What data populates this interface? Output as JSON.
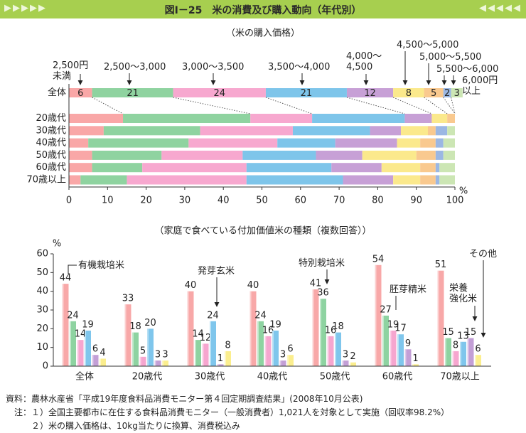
{
  "header": {
    "title": "図Ⅰ－25　米の消費及び購入動向（年代別）"
  },
  "chart_data": [
    {
      "type": "stackedbar",
      "subtitle": "（米の購入価格）",
      "categories": [
        "全体",
        "20歳代",
        "30歳代",
        "40歳代",
        "50歳代",
        "60歳代",
        "70歳以上"
      ],
      "series": [
        {
          "name": "2,500円\n未満",
          "color": "#f9a7a7",
          "values": [
            6,
            14,
            9,
            5,
            6,
            6,
            3
          ]
        },
        {
          "name": "2,500～3,000",
          "color": "#8fd3a0",
          "values": [
            21,
            33,
            25,
            26,
            18,
            13,
            12
          ]
        },
        {
          "name": "3,000～3,500",
          "color": "#f7a8cf",
          "values": [
            24,
            16,
            24,
            23,
            21,
            27,
            31
          ]
        },
        {
          "name": "3,500～4,000",
          "color": "#7ec5ea",
          "values": [
            21,
            24,
            20,
            15,
            19,
            22,
            25
          ]
        },
        {
          "name": "4,000～\n4,500",
          "color": "#c7a0d6",
          "values": [
            12,
            7,
            8,
            16,
            12,
            13,
            13
          ]
        },
        {
          "name": "4,500～5,000",
          "color": "#fbe98c",
          "values": [
            8,
            4,
            7,
            6,
            14,
            10,
            7
          ]
        },
        {
          "name": "5,000～5,500",
          "color": "#f9c98f",
          "values": [
            5,
            2,
            2,
            4,
            5,
            4,
            4
          ]
        },
        {
          "name": "5,500～6,000",
          "color": "#9bb7e3",
          "values": [
            2,
            0,
            3,
            2,
            2,
            1,
            1
          ]
        },
        {
          "name": "6,000円\n以上",
          "color": "#cce6b4",
          "values": [
            3,
            0,
            2,
            3,
            3,
            4,
            4
          ]
        }
      ],
      "xlim": [
        0,
        100
      ],
      "xticks": [
        0,
        10,
        20,
        30,
        40,
        50,
        60,
        70,
        80,
        90,
        100
      ],
      "x_unit": "%"
    },
    {
      "type": "bar",
      "subtitle": "（家庭で食べている付加価値米の種類（複数回答））",
      "categories": [
        "全体",
        "20歳代",
        "30歳代",
        "40歳代",
        "50歳代",
        "60歳代",
        "70歳以上"
      ],
      "series": [
        {
          "name": "有機栽培米",
          "color": "#f8a8a8",
          "values": [
            44,
            33,
            40,
            40,
            41,
            54,
            51
          ]
        },
        {
          "name": "特別栽培米",
          "color": "#8ed3a1",
          "values": [
            24,
            18,
            14,
            24,
            36,
            27,
            15
          ]
        },
        {
          "name": "胚芽精米",
          "color": "#f6a6cf",
          "values": [
            14,
            5,
            12,
            16,
            16,
            19,
            8
          ]
        },
        {
          "name": "発芽玄米",
          "color": "#7fc6ec",
          "values": [
            19,
            20,
            24,
            19,
            18,
            17,
            13
          ]
        },
        {
          "name": "栄養\n強化米",
          "color": "#c39fd6",
          "values": [
            6,
            3,
            1,
            3,
            3,
            9,
            15
          ]
        },
        {
          "name": "その他",
          "color": "#fbee8e",
          "values": [
            4,
            3,
            8,
            6,
            2,
            1,
            6
          ]
        }
      ],
      "ylim": [
        0,
        60
      ],
      "yticks": [
        0,
        10,
        20,
        30,
        40,
        50,
        60
      ],
      "y_unit": "%"
    }
  ],
  "notes": [
    "資料：農林水産省「平成19年度食料品消費モニター第４回定期調査結果」(2008年10月公表)",
    "　注：１）全国主要都市に在住する食料品消費モニター（一般消費者）1,021人を対象として実施（回収率98.2%）",
    "　　　２）米の購入価格は、10kg当たりに換算、消費税込み"
  ]
}
